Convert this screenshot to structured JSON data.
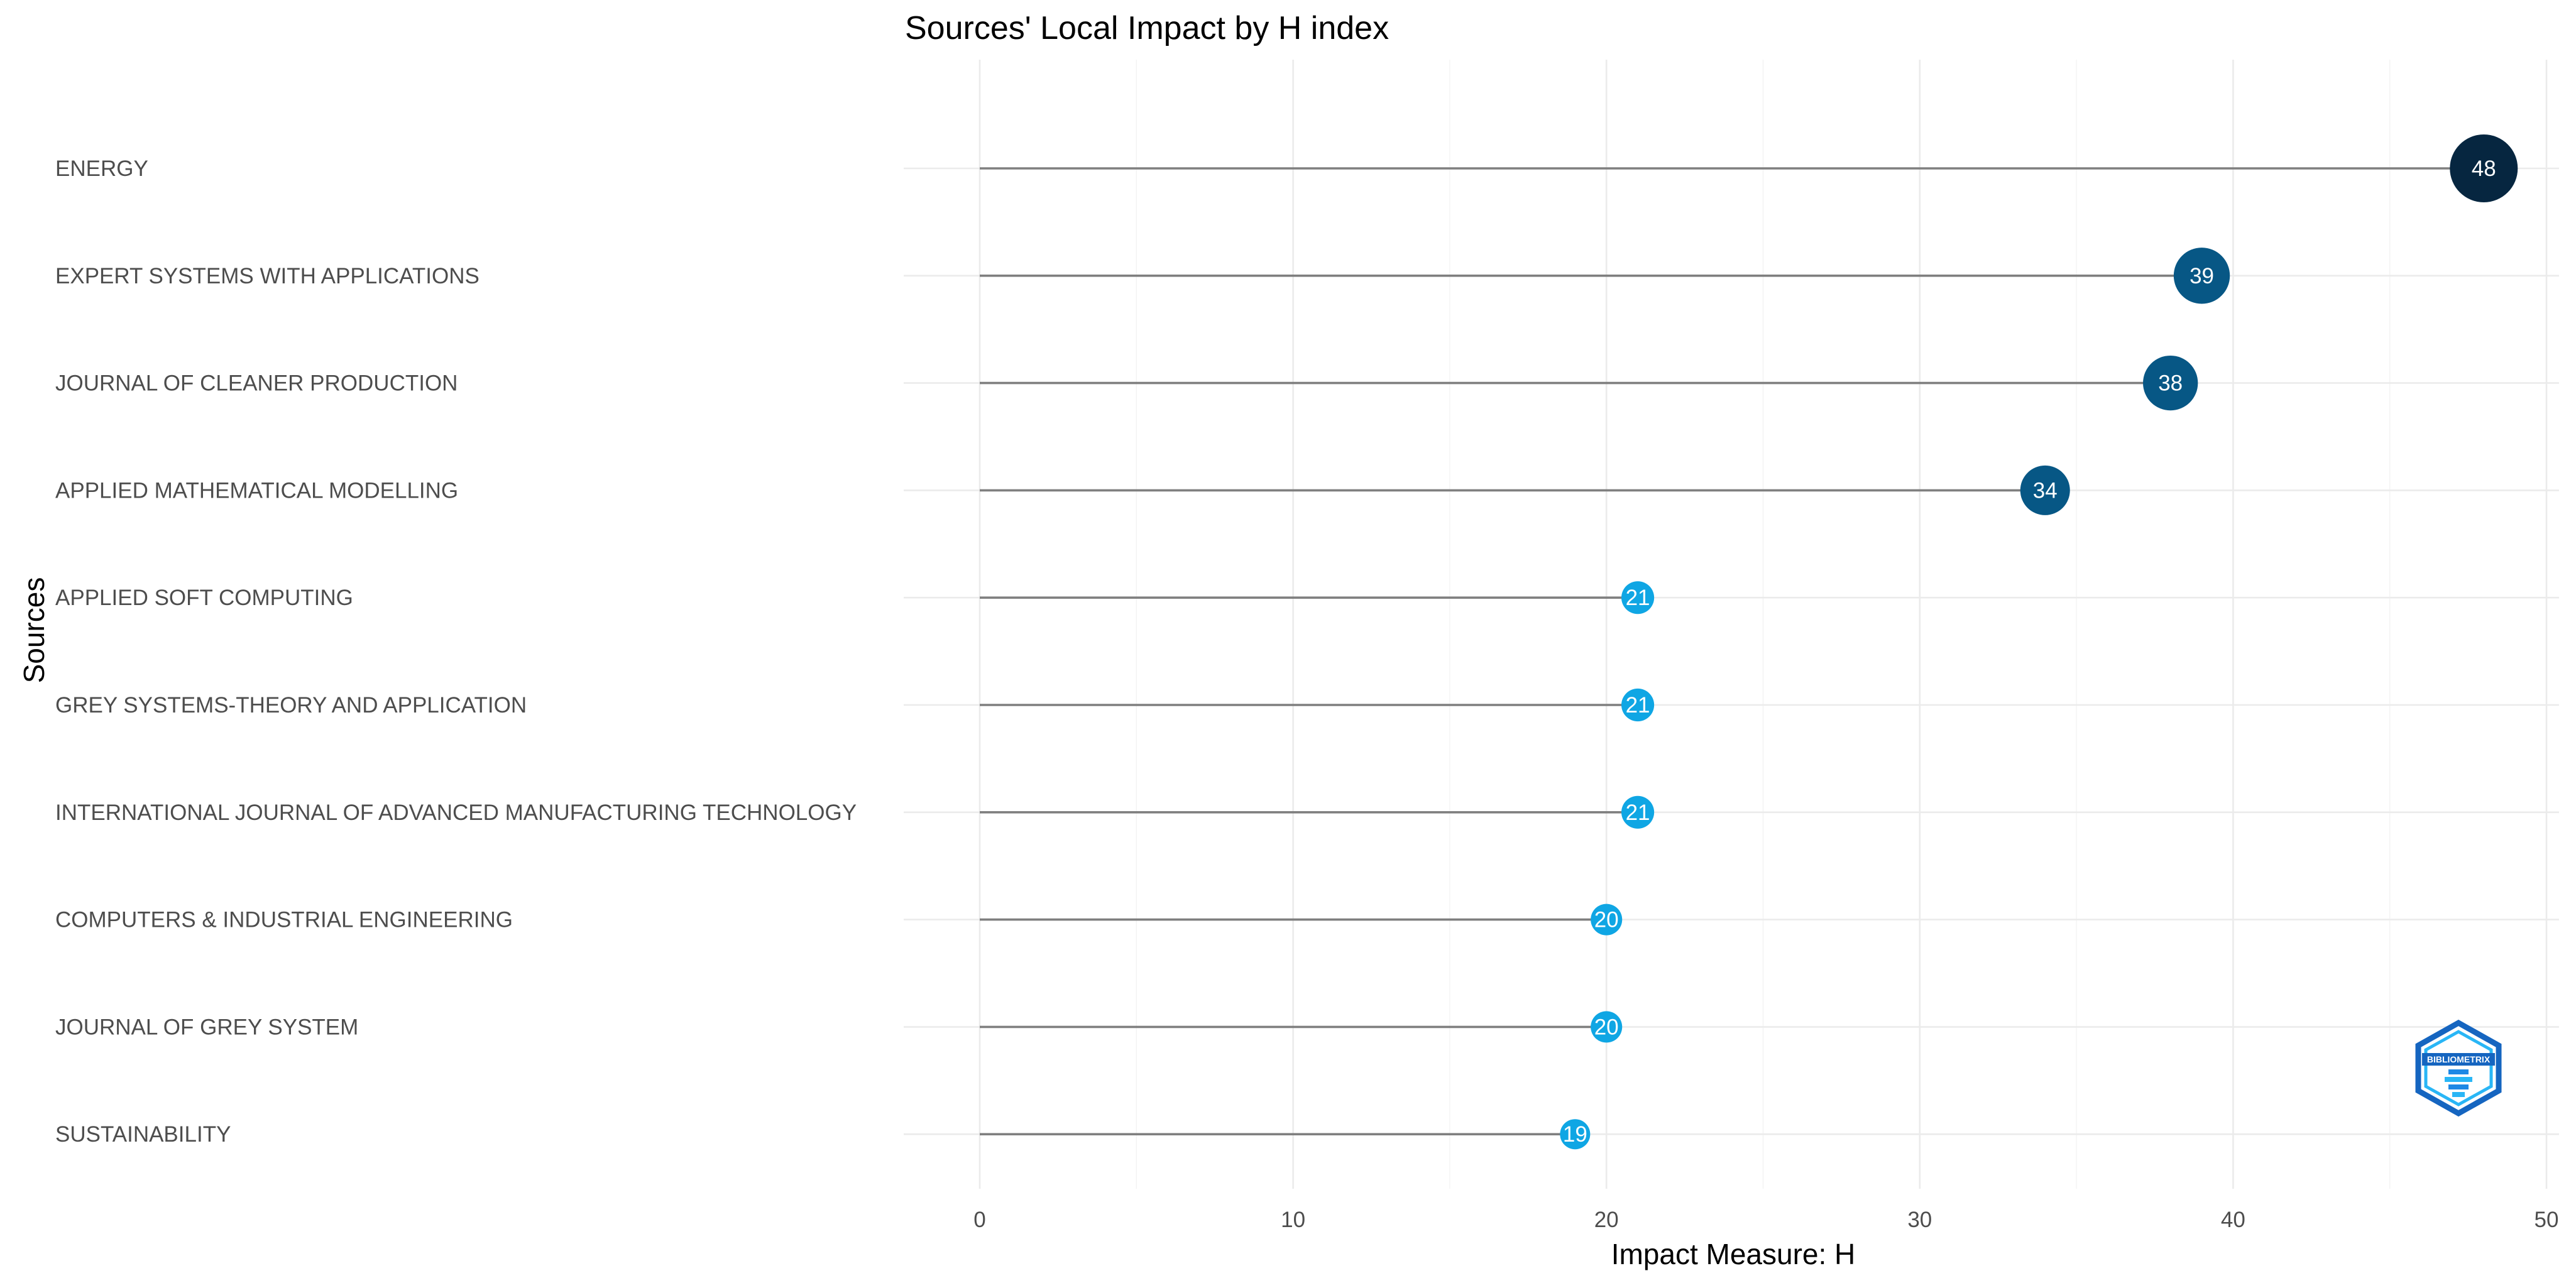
{
  "chart_data": {
    "type": "lollipop",
    "title": "Sources' Local Impact by H index",
    "xlabel": "Impact Measure: H",
    "ylabel": "Sources",
    "xlim": [
      0,
      50
    ],
    "x_ticks": [
      0,
      10,
      20,
      30,
      40,
      50
    ],
    "grid": true,
    "legend": "none",
    "categories": [
      "ENERGY",
      "EXPERT SYSTEMS WITH APPLICATIONS",
      "JOURNAL OF CLEANER PRODUCTION",
      "APPLIED MATHEMATICAL MODELLING",
      "APPLIED SOFT COMPUTING",
      "GREY SYSTEMS-THEORY AND APPLICATION",
      "INTERNATIONAL JOURNAL OF ADVANCED MANUFACTURING TECHNOLOGY",
      "COMPUTERS & INDUSTRIAL ENGINEERING",
      "JOURNAL OF GREY SYSTEM",
      "SUSTAINABILITY"
    ],
    "values": [
      48,
      39,
      38,
      34,
      21,
      21,
      21,
      20,
      20,
      19
    ],
    "colors": {
      "low": "#0fa6e4",
      "mid": "#075785",
      "high": "#062640",
      "segment": "#7f7f7f",
      "label": "#ffffff"
    }
  },
  "logo": {
    "text": "BIBLIOMETRIX",
    "colors": [
      "#1565c0",
      "#29b6f6"
    ]
  }
}
